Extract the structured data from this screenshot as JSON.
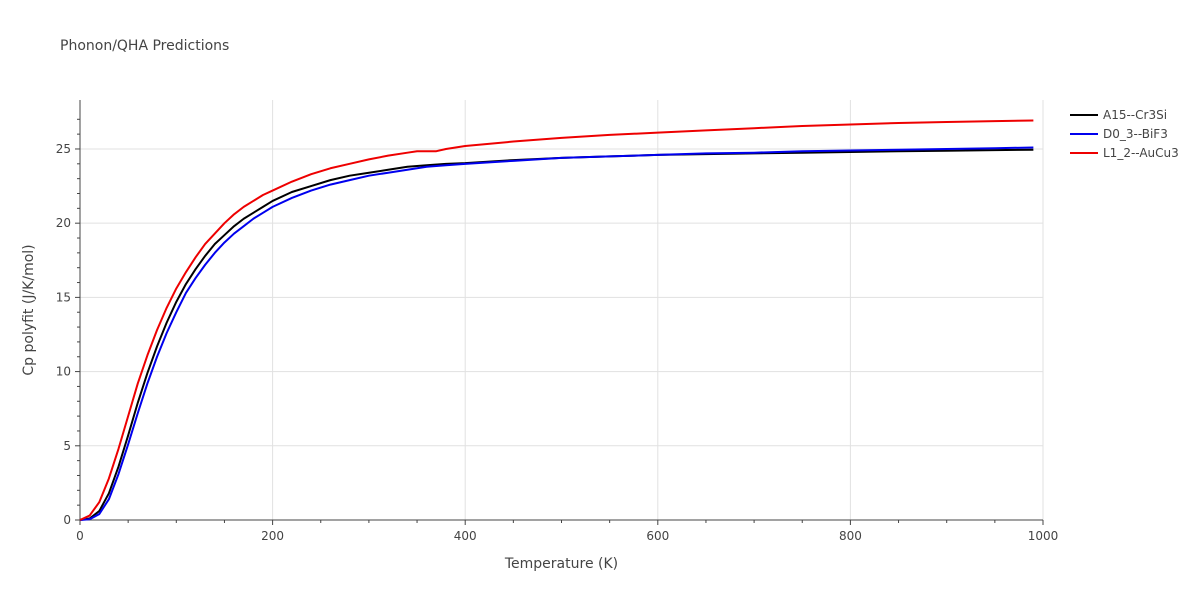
{
  "chart_data": {
    "type": "line",
    "title": "Phonon/QHA Predictions",
    "xlabel": "Temperature (K)",
    "ylabel": "Cp polyfit (J/K/mol)",
    "xlim": [
      0,
      1000
    ],
    "ylim": [
      0,
      28.3
    ],
    "xticks": [
      0,
      200,
      400,
      600,
      800,
      1000
    ],
    "yticks": [
      0,
      5,
      10,
      15,
      20,
      25
    ],
    "grid": true,
    "legend_position": "top-right",
    "series": [
      {
        "name": "A15--Cr3Si",
        "color": "#000000",
        "x": [
          0,
          10,
          20,
          30,
          40,
          50,
          60,
          70,
          80,
          90,
          100,
          110,
          120,
          130,
          140,
          150,
          160,
          170,
          180,
          190,
          200,
          220,
          240,
          260,
          280,
          300,
          320,
          340,
          360,
          380,
          400,
          450,
          500,
          550,
          600,
          650,
          700,
          750,
          800,
          850,
          900,
          950,
          990
        ],
        "y": [
          0,
          0.1,
          0.6,
          1.8,
          3.6,
          5.7,
          7.9,
          9.9,
          11.7,
          13.3,
          14.7,
          15.9,
          16.9,
          17.8,
          18.6,
          19.2,
          19.8,
          20.3,
          20.7,
          21.1,
          21.5,
          22.1,
          22.5,
          22.9,
          23.2,
          23.4,
          23.6,
          23.8,
          23.9,
          24.0,
          24.05,
          24.25,
          24.4,
          24.5,
          24.6,
          24.65,
          24.7,
          24.75,
          24.8,
          24.85,
          24.88,
          24.92,
          24.95
        ]
      },
      {
        "name": "D0_3--BiF3",
        "color": "#0000ee",
        "x": [
          0,
          10,
          20,
          30,
          40,
          50,
          60,
          70,
          80,
          90,
          100,
          110,
          120,
          130,
          140,
          150,
          160,
          170,
          180,
          190,
          200,
          220,
          240,
          260,
          280,
          300,
          320,
          340,
          360,
          380,
          400,
          450,
          500,
          550,
          600,
          650,
          700,
          750,
          800,
          850,
          900,
          950,
          990
        ],
        "y": [
          0,
          0.05,
          0.4,
          1.4,
          3.1,
          5.1,
          7.2,
          9.2,
          11.0,
          12.6,
          14.0,
          15.3,
          16.3,
          17.2,
          18.0,
          18.7,
          19.3,
          19.8,
          20.3,
          20.7,
          21.1,
          21.7,
          22.2,
          22.6,
          22.9,
          23.2,
          23.4,
          23.6,
          23.8,
          23.9,
          24.0,
          24.2,
          24.4,
          24.5,
          24.6,
          24.7,
          24.75,
          24.85,
          24.9,
          24.95,
          25.0,
          25.05,
          25.1
        ]
      },
      {
        "name": "L1_2--AuCu3",
        "color": "#ee0000",
        "x": [
          0,
          10,
          20,
          30,
          40,
          50,
          60,
          70,
          80,
          90,
          100,
          110,
          120,
          130,
          140,
          150,
          160,
          170,
          180,
          190,
          200,
          220,
          240,
          260,
          280,
          300,
          320,
          340,
          350,
          360,
          370,
          380,
          400,
          450,
          500,
          550,
          600,
          650,
          700,
          750,
          800,
          850,
          900,
          950,
          990
        ],
        "y": [
          0,
          0.3,
          1.2,
          2.8,
          4.8,
          7.0,
          9.2,
          11.1,
          12.8,
          14.3,
          15.6,
          16.7,
          17.7,
          18.6,
          19.3,
          20.0,
          20.6,
          21.1,
          21.5,
          21.9,
          22.2,
          22.8,
          23.3,
          23.7,
          24.0,
          24.3,
          24.55,
          24.75,
          24.85,
          24.85,
          24.85,
          25.0,
          25.2,
          25.5,
          25.75,
          25.95,
          26.1,
          26.25,
          26.4,
          26.55,
          26.65,
          26.75,
          26.82,
          26.88,
          26.92
        ]
      }
    ]
  }
}
